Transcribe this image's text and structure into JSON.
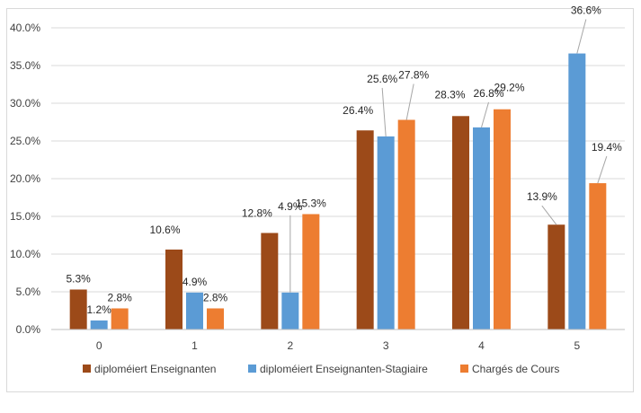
{
  "chart_data": {
    "type": "bar",
    "title": "",
    "xlabel": "",
    "ylabel": "",
    "categories": [
      "0",
      "1",
      "2",
      "3",
      "4",
      "5"
    ],
    "ylim": [
      0,
      40
    ],
    "yticks": [
      0,
      5,
      10,
      15,
      20,
      25,
      30,
      35,
      40
    ],
    "ytick_labels": [
      "0.0%",
      "5.0%",
      "10.0%",
      "15.0%",
      "20.0%",
      "25.0%",
      "30.0%",
      "35.0%",
      "40.0%"
    ],
    "grid": true,
    "legend_position": "bottom",
    "series": [
      {
        "name": "diploméiert Enseignanten",
        "color": "#9c4a19",
        "values": [
          5.3,
          10.6,
          12.8,
          26.4,
          28.3,
          13.9
        ],
        "labels": [
          "5.3%",
          "10.6%",
          "12.8%",
          "26.4%",
          "28.3%",
          "13.9%"
        ]
      },
      {
        "name": "diploméiert Enseignanten-Stagiaire",
        "color": "#5b9bd5",
        "values": [
          1.2,
          4.9,
          4.9,
          25.6,
          26.8,
          36.6
        ],
        "labels": [
          "1.2%",
          "4.9%",
          "4.9%",
          "25.6%",
          "26.8%",
          "36.6%"
        ]
      },
      {
        "name": "Chargés de Cours",
        "color": "#ed7d31",
        "values": [
          2.8,
          2.8,
          15.3,
          27.8,
          29.2,
          19.4
        ],
        "labels": [
          "2.8%",
          "2.8%",
          "15.3%",
          "27.8%",
          "29.2%",
          "19.4%"
        ]
      }
    ]
  }
}
